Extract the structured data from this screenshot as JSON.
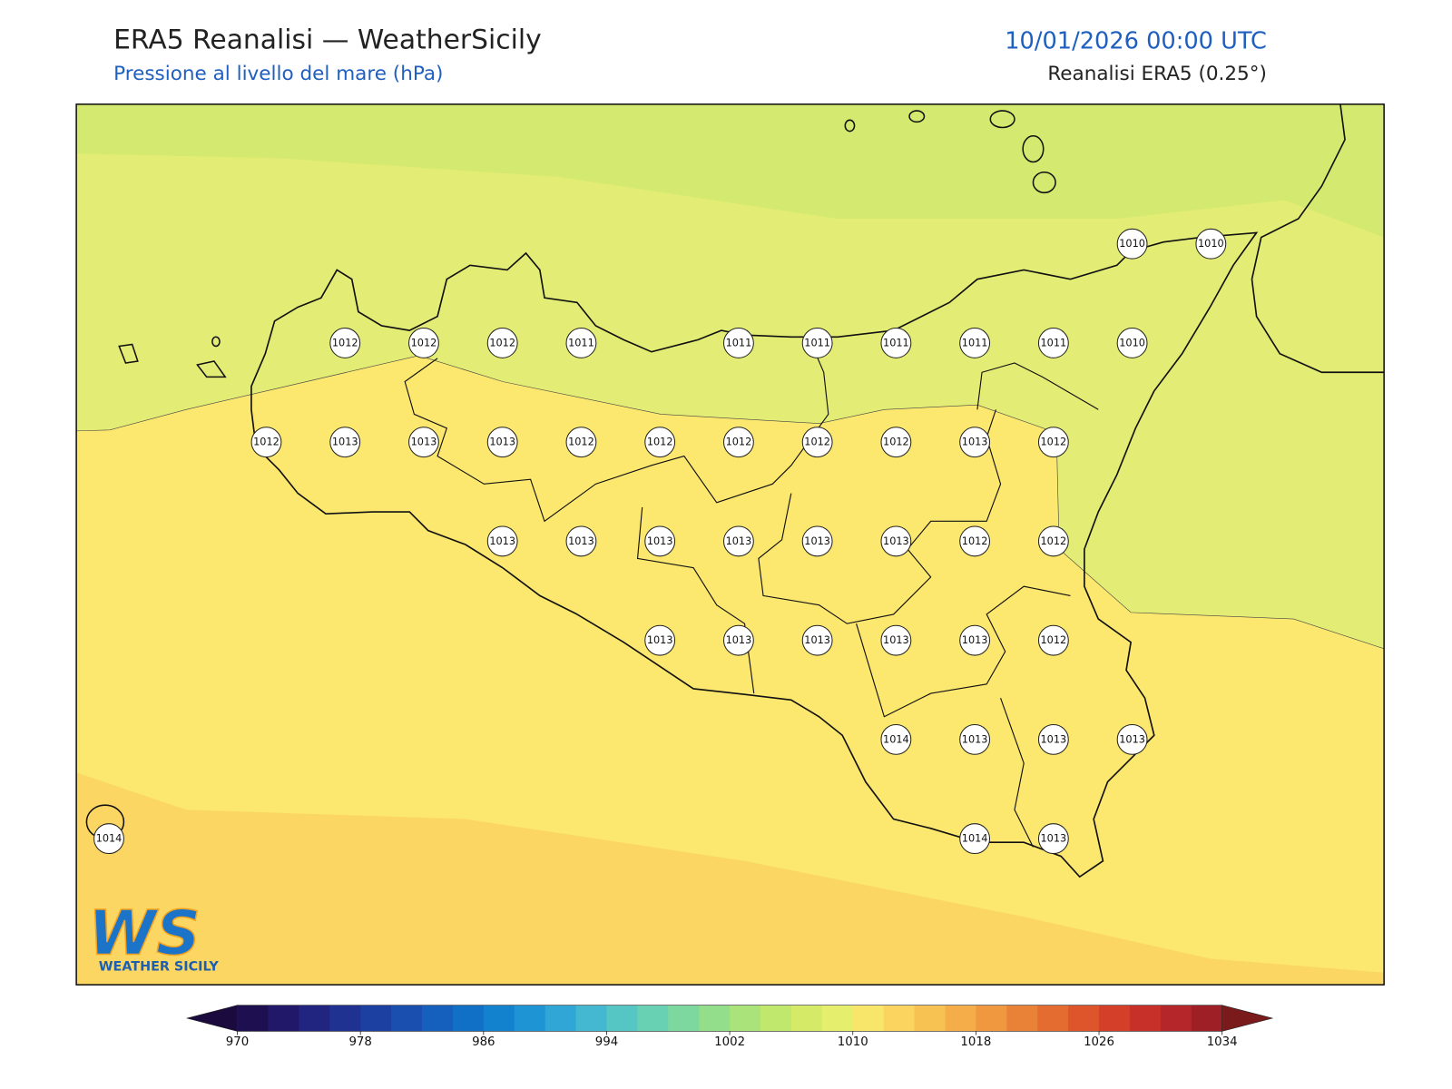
{
  "header": {
    "title": "ERA5 Reanalisi — WeatherSicily",
    "subtitle": "Pressione al livello del mare (hPa)",
    "datetime": "10/01/2026 00:00 UTC",
    "source": "Reanalisi ERA5 (0.25°)"
  },
  "pressure_labels": {
    "rows": [
      [
        null,
        null,
        null,
        null,
        null,
        null,
        null,
        null,
        null,
        null,
        null,
        null,
        null,
        1010,
        1010
      ],
      [
        null,
        null,
        null,
        1012,
        1012,
        1012,
        1011,
        null,
        1011,
        1011,
        1011,
        1011,
        1011,
        1010,
        null
      ],
      [
        null,
        null,
        1012,
        1013,
        1013,
        1013,
        1012,
        1012,
        1012,
        1012,
        1012,
        1013,
        1012,
        null,
        null
      ],
      [
        null,
        null,
        null,
        null,
        null,
        1013,
        1013,
        1013,
        1013,
        1013,
        1013,
        1012,
        1012,
        null,
        null
      ],
      [
        null,
        null,
        null,
        null,
        null,
        null,
        null,
        1013,
        1013,
        1013,
        1013,
        1013,
        1012,
        null,
        null
      ],
      [
        null,
        null,
        null,
        null,
        null,
        null,
        null,
        null,
        null,
        null,
        1014,
        1013,
        1013,
        1013,
        null
      ],
      [
        1014,
        null,
        null,
        null,
        null,
        null,
        null,
        null,
        null,
        null,
        null,
        1014,
        1013,
        null,
        null
      ]
    ]
  },
  "colorbar": {
    "ticks": [
      970,
      978,
      986,
      994,
      1002,
      1010,
      1018,
      1026,
      1034
    ],
    "colors": [
      "#1e1050",
      "#22186a",
      "#212580",
      "#1f3292",
      "#1b40a2",
      "#1a4fb0",
      "#1560bc",
      "#1070c6",
      "#1282cf",
      "#1f94d4",
      "#2fa6d6",
      "#43b8d0",
      "#56c6c4",
      "#68d0b3",
      "#7cd89f",
      "#92de8b",
      "#a9e37a",
      "#c0e86d",
      "#d5eb68",
      "#e6ee6e",
      "#f8e66a",
      "#fad45e",
      "#f8c253",
      "#f4ad48",
      "#ef983f",
      "#e98237",
      "#e46c31",
      "#de552c",
      "#d43f2a",
      "#c63029",
      "#b4262a",
      "#9e1f26"
    ]
  },
  "logo": {
    "mark": "WS",
    "text": "WEATHER SICILY"
  }
}
